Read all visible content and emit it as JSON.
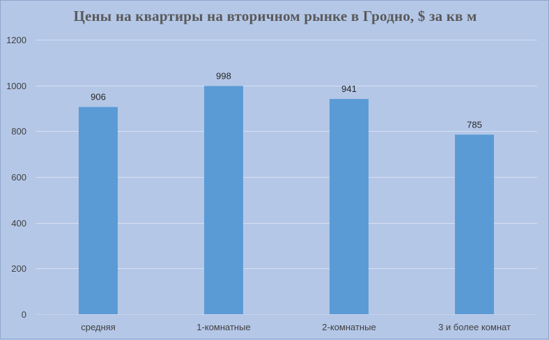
{
  "chart_data": {
    "type": "bar",
    "title": "Цены на квартиры на вторичном рынке в Гродно, $ за кв м",
    "categories": [
      "средняя",
      "1-комнатные",
      "2-комнатные",
      "3 и более комнат"
    ],
    "values": [
      906,
      998,
      941,
      785
    ],
    "xlabel": "",
    "ylabel": "",
    "ylim": [
      0,
      1200
    ],
    "yticks": [
      0,
      200,
      400,
      600,
      800,
      1000,
      1200
    ],
    "grid": true,
    "legend": "none",
    "bar_color": "#5b9bd5",
    "background_color": "#b4c7e7"
  }
}
